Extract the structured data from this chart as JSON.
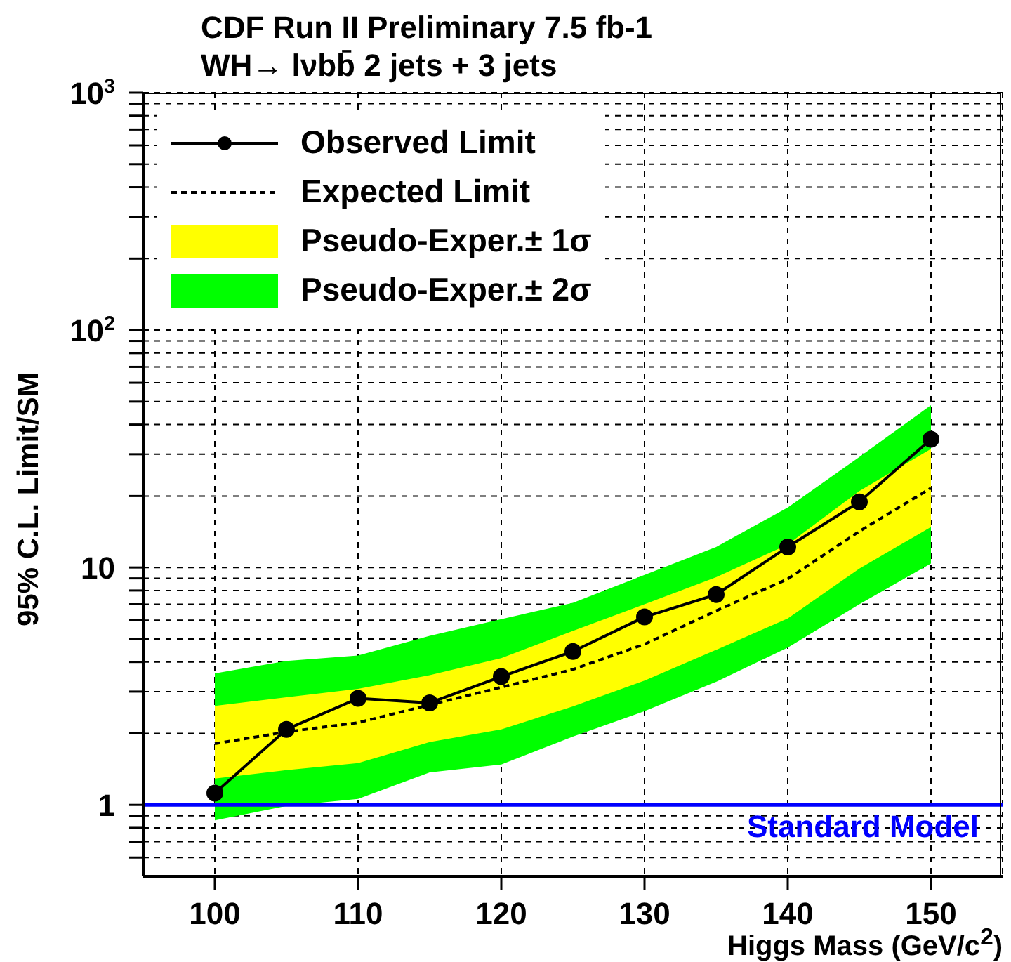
{
  "chart_data": {
    "type": "line",
    "title": "CDF Run II Preliminary 7.5 fb-1",
    "subtitle": "WH→ lνbb̄ 2 jets + 3 jets",
    "xlabel": "Higgs Mass (GeV/c$^{2}$)",
    "ylabel": "95% C.L. Limit/SM",
    "x": [
      100,
      105,
      110,
      115,
      120,
      125,
      130,
      135,
      140,
      145,
      150
    ],
    "series": [
      {
        "name": "Observed Limit",
        "type": "line",
        "color": "#000000",
        "marker": "circle",
        "line_style": "solid",
        "values": [
          1.12,
          2.08,
          2.81,
          2.69,
          3.47,
          4.43,
          6.19,
          7.69,
          12.2,
          18.9,
          34.7
        ]
      },
      {
        "name": "Expected Limit",
        "type": "line",
        "color": "#000000",
        "marker": "none",
        "line_style": "dashed",
        "values": [
          1.81,
          2.03,
          2.22,
          2.64,
          3.13,
          3.72,
          4.75,
          6.57,
          8.95,
          14.2,
          21.6
        ]
      },
      {
        "name": "Pseudo-Exper.± 1σ",
        "type": "line",
        "line_style": "dashed",
        "marker": "none",
        "color": "#ffff00",
        "values": [
          null,
          null,
          null,
          null,
          null,
          null,
          null,
          null,
          null,
          null,
          null
        ],
        "lower": [
          1.29,
          1.4,
          1.5,
          1.84,
          2.08,
          2.6,
          3.34,
          4.5,
          6.1,
          9.9,
          14.8
        ],
        "upper": [
          2.61,
          2.84,
          3.08,
          3.52,
          4.15,
          5.4,
          7.0,
          9.1,
          12.5,
          21,
          31.6
        ]
      },
      {
        "name": "Pseudo-Exper.± 2σ",
        "type": "line",
        "line_style": "dashed",
        "marker": "none",
        "color": "#00ff00",
        "values": [
          null,
          null,
          null,
          null,
          null,
          null,
          null,
          null,
          null,
          null,
          null
        ],
        "lower": [
          0.86,
          0.99,
          1.06,
          1.37,
          1.48,
          1.94,
          2.48,
          3.3,
          4.6,
          7.0,
          10.4
        ],
        "upper": [
          3.58,
          4.04,
          4.26,
          5.15,
          6.06,
          7.1,
          9.3,
          12.2,
          17.9,
          29.2,
          48.3
        ]
      }
    ],
    "xlim": [
      95,
      155
    ],
    "xticks": [
      100,
      110,
      120,
      130,
      140,
      150
    ],
    "ylim": [
      0.5,
      1000
    ],
    "log": "y",
    "yticks": [
      {
        "value": 0.6,
        "label": null
      },
      {
        "value": 0.7,
        "label": null
      },
      {
        "value": 0.8,
        "label": null
      },
      {
        "value": 0.9,
        "label": null
      },
      1,
      {
        "value": 2,
        "label": null
      },
      {
        "value": 3,
        "label": null
      },
      {
        "value": 4,
        "label": null
      },
      {
        "value": 5,
        "label": null
      },
      {
        "value": 6,
        "label": null
      },
      {
        "value": 7,
        "label": null
      },
      {
        "value": 8,
        "label": null
      },
      {
        "value": 9,
        "label": null
      },
      10,
      {
        "value": 20,
        "label": null
      },
      {
        "value": 30,
        "label": null
      },
      {
        "value": 40,
        "label": null
      },
      {
        "value": 50,
        "label": null
      },
      {
        "value": 60,
        "label": null
      },
      {
        "value": 70,
        "label": null
      },
      {
        "value": 80,
        "label": null
      },
      {
        "value": 90,
        "label": null
      },
      {
        "value": 100,
        "label": "10$^{2}$"
      },
      {
        "value": 200,
        "label": null
      },
      {
        "value": 300,
        "label": null
      },
      {
        "value": 400,
        "label": null
      },
      {
        "value": 500,
        "label": null
      },
      {
        "value": 600,
        "label": null
      },
      {
        "value": 700,
        "label": null
      },
      {
        "value": 800,
        "label": null
      },
      {
        "value": 900,
        "label": null
      },
      {
        "value": 1000,
        "label": "10$^{3}$"
      }
    ],
    "ref_lines": [
      {
        "axis": "y",
        "value": 1,
        "label": "Standard Model",
        "color": "#0000ff"
      }
    ],
    "grid": true,
    "legend": "top left"
  }
}
